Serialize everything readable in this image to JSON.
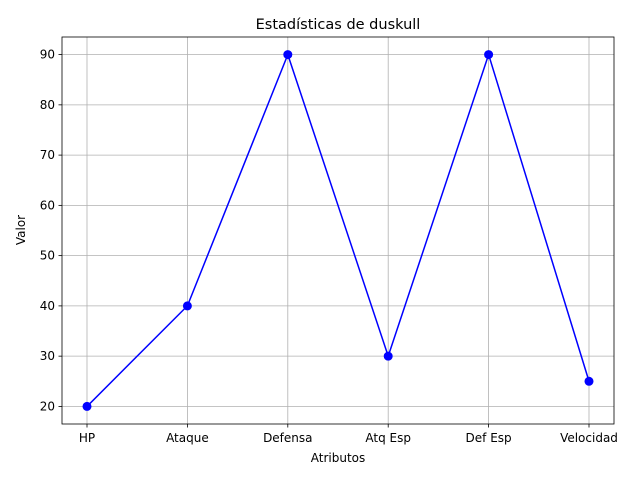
{
  "chart_data": {
    "type": "line",
    "title": "Estadísticas de duskull",
    "xlabel": "Atributos",
    "ylabel": "Valor",
    "categories": [
      "HP",
      "Ataque",
      "Defensa",
      "Atq Esp",
      "Def Esp",
      "Velocidad"
    ],
    "series": [
      {
        "values": [
          20,
          40,
          90,
          30,
          90,
          25
        ],
        "color": "#0000ff",
        "marker": "circle"
      }
    ],
    "ylim": [
      16.5,
      93.5
    ],
    "yticks": [
      20,
      30,
      40,
      50,
      60,
      70,
      80,
      90
    ],
    "grid": true
  }
}
